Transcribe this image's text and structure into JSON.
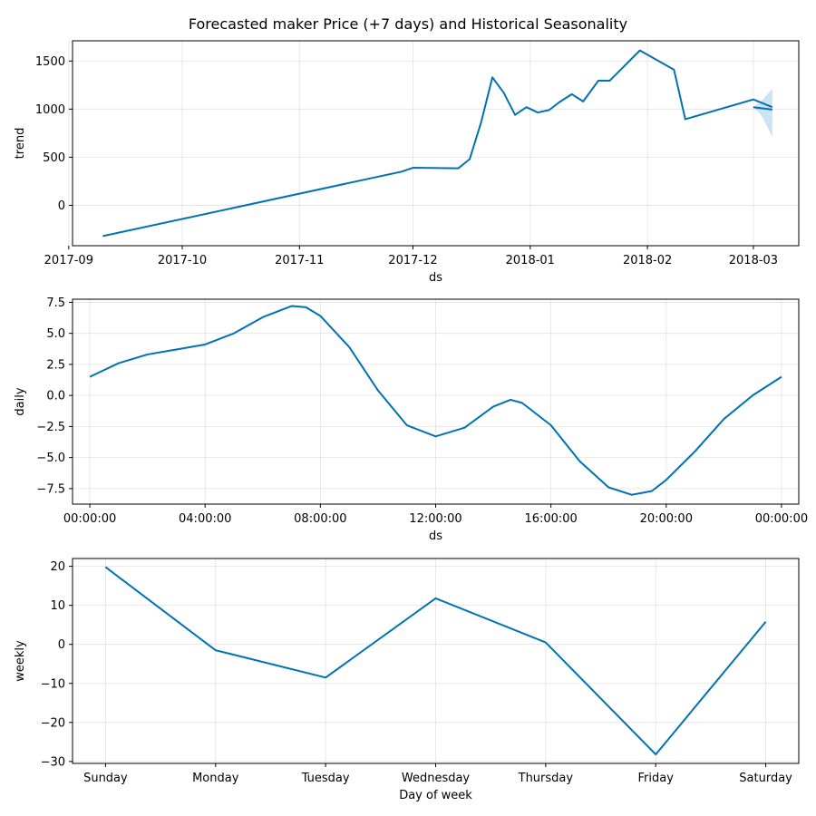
{
  "title": "Forecasted maker Price (+7 days) and Historical Seasonality",
  "colors": {
    "line": "#0072B2",
    "band": "#0072B2"
  },
  "chart_data": [
    {
      "type": "line",
      "id": "trend",
      "xlabel": "ds",
      "ylabel": "trend",
      "x_type": "date",
      "xlim": [
        "2017-09-02",
        "2018-03-13"
      ],
      "ylim": [
        -420,
        1710
      ],
      "x_ticks": [
        {
          "value": "2017-09-01",
          "label": "2017-09"
        },
        {
          "value": "2017-10-01",
          "label": "2017-10"
        },
        {
          "value": "2017-11-01",
          "label": "2017-11"
        },
        {
          "value": "2017-12-01",
          "label": "2017-12"
        },
        {
          "value": "2018-01-01",
          "label": "2018-01"
        },
        {
          "value": "2018-02-01",
          "label": "2018-02"
        },
        {
          "value": "2018-03-01",
          "label": "2018-03"
        }
      ],
      "y_ticks": [
        0,
        500,
        1000,
        1500
      ],
      "grid": true,
      "series": [
        {
          "x": [
            "2017-09-10",
            "2017-11-28",
            "2017-12-01",
            "2017-12-13",
            "2017-12-16",
            "2017-12-19",
            "2017-12-22",
            "2017-12-25",
            "2017-12-28",
            "2017-12-31",
            "2018-01-03",
            "2018-01-06",
            "2018-01-09",
            "2018-01-12",
            "2018-01-15",
            "2018-01-19",
            "2018-01-22",
            "2018-01-30",
            "2018-02-08",
            "2018-02-11",
            "2018-03-01",
            "2018-03-06"
          ],
          "y": [
            -320,
            350,
            390,
            385,
            480,
            860,
            1330,
            1170,
            940,
            1020,
            965,
            990,
            1080,
            1155,
            1080,
            1295,
            1295,
            1610,
            1410,
            895,
            1100,
            1020
          ]
        }
      ],
      "band": {
        "x": [
          "2018-03-01",
          "2018-03-03",
          "2018-03-06"
        ],
        "lower": [
          1020,
          940,
          715
        ],
        "upper": [
          1020,
          1080,
          1210
        ]
      },
      "forecast_line": {
        "x": [
          "2018-03-01",
          "2018-03-06"
        ],
        "y": [
          1020,
          995
        ]
      }
    },
    {
      "type": "line",
      "id": "daily",
      "xlabel": "ds",
      "ylabel": "daily",
      "xlim": [
        -0.6,
        24.6
      ],
      "ylim": [
        -8.75,
        7.75
      ],
      "x_ticks": [
        {
          "value": 0,
          "label": "00:00:00"
        },
        {
          "value": 4,
          "label": "04:00:00"
        },
        {
          "value": 8,
          "label": "08:00:00"
        },
        {
          "value": 12,
          "label": "12:00:00"
        },
        {
          "value": 16,
          "label": "16:00:00"
        },
        {
          "value": 20,
          "label": "20:00:00"
        },
        {
          "value": 24,
          "label": "00:00:00"
        }
      ],
      "y_ticks": [
        -7.5,
        -5.0,
        -2.5,
        0.0,
        2.5,
        5.0,
        7.5
      ],
      "y_tick_labels": [
        "−7.5",
        "−5.0",
        "−2.5",
        "0.0",
        "2.5",
        "5.0",
        "7.5"
      ],
      "grid": true,
      "series": [
        {
          "x": [
            0,
            1,
            2,
            3,
            4,
            5,
            6,
            7,
            7.5,
            8,
            9,
            10,
            11,
            12,
            13,
            14,
            14.6,
            15,
            16,
            17,
            18,
            18.8,
            19.5,
            20,
            21,
            22,
            23,
            24
          ],
          "y": [
            1.5,
            2.6,
            3.3,
            3.7,
            4.1,
            5.0,
            6.3,
            7.2,
            7.1,
            6.4,
            3.9,
            0.4,
            -2.4,
            -3.3,
            -2.6,
            -0.9,
            -0.35,
            -0.6,
            -2.4,
            -5.3,
            -7.4,
            -8.0,
            -7.7,
            -6.8,
            -4.5,
            -1.9,
            0.0,
            1.5
          ]
        }
      ]
    },
    {
      "type": "line",
      "id": "weekly",
      "xlabel": "Day of week",
      "ylabel": "weekly",
      "xlim": [
        -0.3,
        6.3
      ],
      "ylim": [
        -30.5,
        22
      ],
      "x_ticks": [
        {
          "value": 0,
          "label": "Sunday"
        },
        {
          "value": 1,
          "label": "Monday"
        },
        {
          "value": 2,
          "label": "Tuesday"
        },
        {
          "value": 3,
          "label": "Wednesday"
        },
        {
          "value": 4,
          "label": "Thursday"
        },
        {
          "value": 5,
          "label": "Friday"
        },
        {
          "value": 6,
          "label": "Saturday"
        }
      ],
      "y_ticks": [
        -30,
        -20,
        -10,
        0,
        10,
        20
      ],
      "y_tick_labels": [
        "−30",
        "−20",
        "−10",
        "0",
        "10",
        "20"
      ],
      "grid": true,
      "series": [
        {
          "x": [
            0,
            1,
            2,
            3,
            4,
            5,
            6
          ],
          "y": [
            19.8,
            -1.5,
            -8.5,
            11.8,
            0.5,
            -28.2,
            5.8
          ]
        }
      ]
    }
  ]
}
